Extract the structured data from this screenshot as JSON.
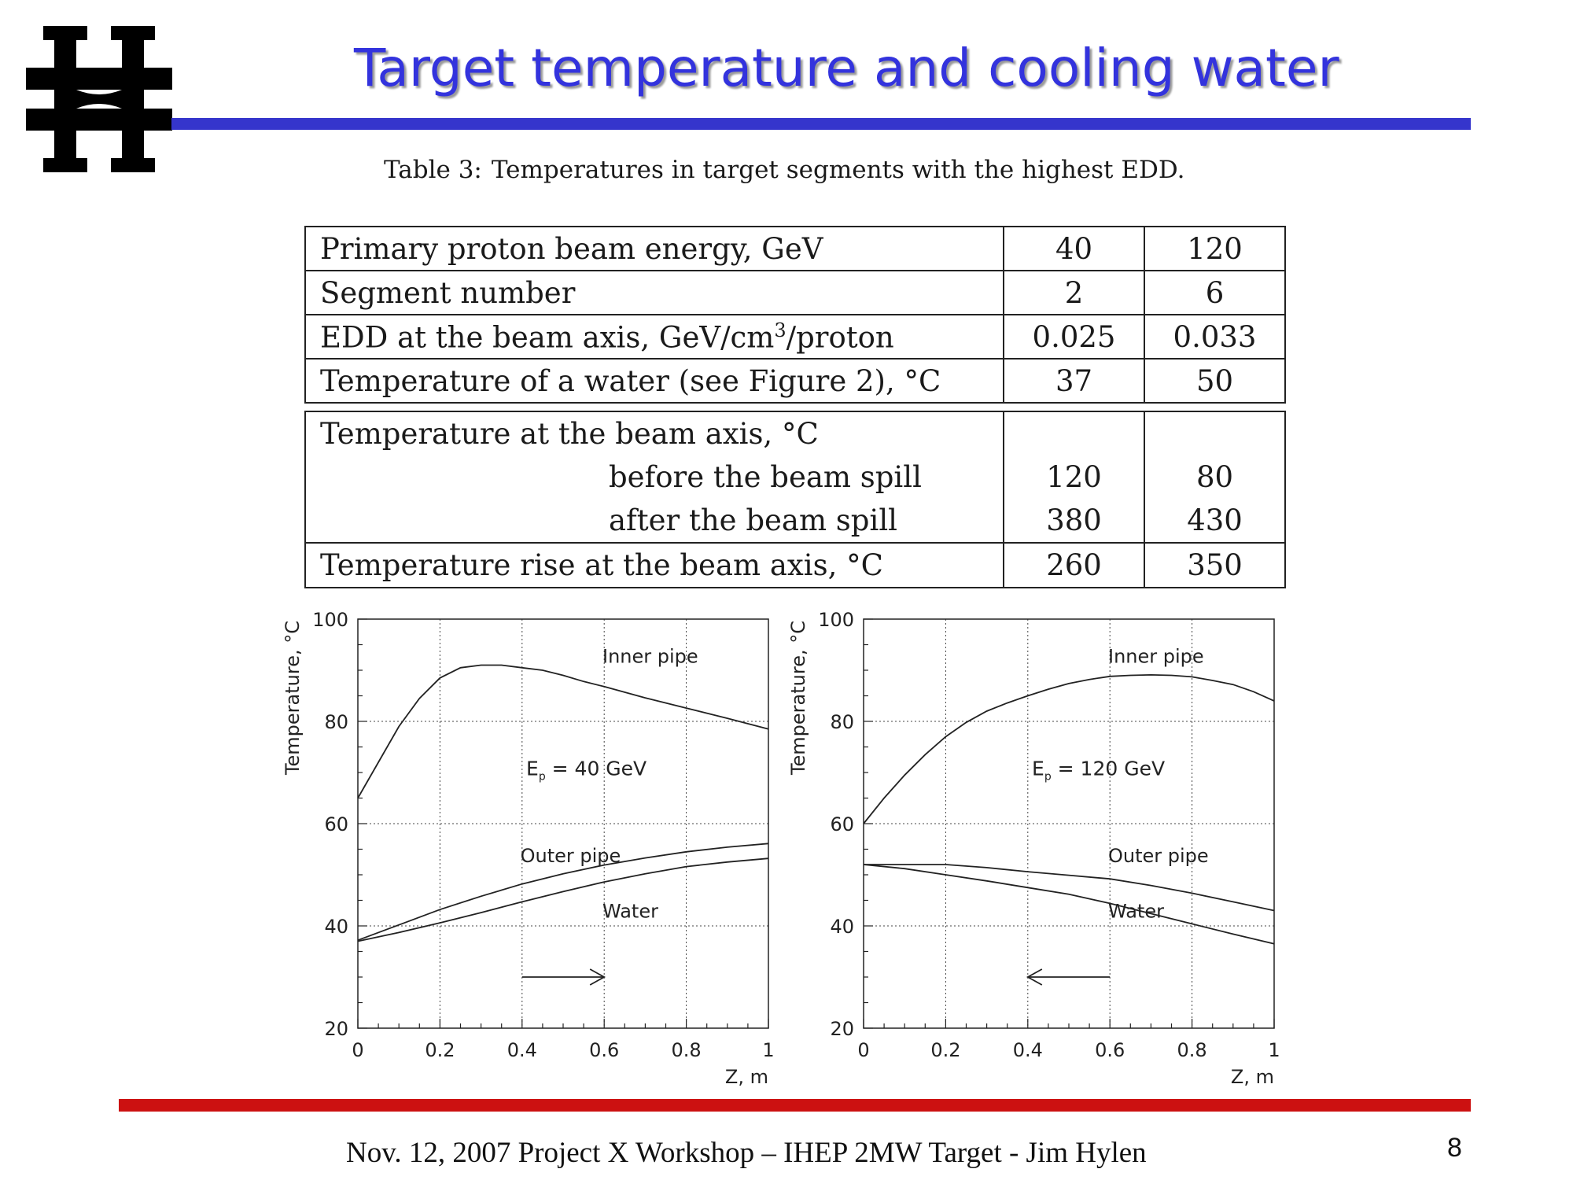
{
  "slide": {
    "title": "Target temperature and cooling water",
    "footer": "Nov. 12, 2007 Project X Workshop – IHEP 2MW Target - Jim Hylen",
    "page_number": "8",
    "colors": {
      "title": "#3333dd",
      "title_rule": "#3535cc",
      "footer_rule": "#cc1111"
    },
    "logo_icon": "fermilab-logo"
  },
  "table": {
    "caption_label": "Table 3:",
    "caption_text": "Temperatures in target segments with the highest EDD.",
    "rows": [
      {
        "label": "Primary proton beam energy, GeV",
        "v40": "40",
        "v120": "120"
      },
      {
        "label": "Segment number",
        "v40": "2",
        "v120": "6"
      },
      {
        "label_pre": "EDD at the beam axis, GeV/cm",
        "label_sup": "3",
        "label_post": "/proton",
        "v40": "0.025",
        "v120": "0.033"
      },
      {
        "label": "Temperature of a water (see Figure 2), °C",
        "v40": "37",
        "v120": "50"
      }
    ],
    "axis_block": {
      "label": "Temperature at the beam axis, °C",
      "before_label": "before the beam spill",
      "before_v40": "120",
      "before_v120": "80",
      "after_label": "after the beam spill",
      "after_v40": "380",
      "after_v120": "430"
    },
    "rise_row": {
      "label": "Temperature rise at the beam axis, °C",
      "v40": "260",
      "v120": "350"
    }
  },
  "chart_data": [
    {
      "type": "line",
      "xlabel": "Z, m",
      "ylabel": "Temperature, °C",
      "xlim": [
        0,
        1
      ],
      "ylim": [
        20,
        100
      ],
      "xticks": [
        "0",
        "0.2",
        "0.4",
        "0.6",
        "0.8",
        "1"
      ],
      "yticks": [
        "20",
        "40",
        "60",
        "80",
        "100"
      ],
      "grid": true,
      "annotation": {
        "main": "E",
        "sub": "p",
        "rest": " = 40 GeV"
      },
      "arrow": {
        "from": 0.4,
        "to": 0.6,
        "y": 30
      },
      "series": [
        {
          "name": "Inner pipe",
          "x": [
            0,
            0.05,
            0.1,
            0.15,
            0.2,
            0.25,
            0.3,
            0.35,
            0.4,
            0.45,
            0.5,
            0.55,
            0.6,
            0.7,
            0.8,
            0.9,
            1.0
          ],
          "y": [
            65,
            72,
            79,
            84.5,
            88.5,
            90.5,
            91,
            91,
            90.5,
            90,
            89,
            87.8,
            86.8,
            84.6,
            82.6,
            80.6,
            78.5
          ],
          "label_pos": [
            0.5,
            91.5
          ]
        },
        {
          "name": "Outer pipe",
          "x": [
            0,
            0.1,
            0.2,
            0.3,
            0.4,
            0.5,
            0.6,
            0.7,
            0.8,
            0.9,
            1.0
          ],
          "y": [
            37.2,
            40.2,
            43.2,
            45.8,
            48.2,
            50.2,
            51.9,
            53.3,
            54.5,
            55.4,
            56.1
          ],
          "label_pos": [
            0.3,
            52.5
          ]
        },
        {
          "name": "Water",
          "x": [
            0,
            0.1,
            0.2,
            0.3,
            0.4,
            0.5,
            0.6,
            0.7,
            0.8,
            0.9,
            1.0
          ],
          "y": [
            37,
            38.7,
            40.6,
            42.6,
            44.7,
            46.7,
            48.6,
            50.2,
            51.6,
            52.5,
            53.2
          ],
          "label_pos": [
            0.5,
            41.6
          ]
        }
      ]
    },
    {
      "type": "line",
      "xlabel": "Z, m",
      "ylabel": "Temperature, °C",
      "xlim": [
        0,
        1
      ],
      "ylim": [
        20,
        100
      ],
      "xticks": [
        "0",
        "0.2",
        "0.4",
        "0.6",
        "0.8",
        "1"
      ],
      "yticks": [
        "20",
        "40",
        "60",
        "80",
        "100"
      ],
      "grid": true,
      "annotation": {
        "main": "E",
        "sub": "p",
        "rest": " = 120 GeV"
      },
      "arrow": {
        "from": 0.6,
        "to": 0.4,
        "y": 30
      },
      "series": [
        {
          "name": "Inner pipe",
          "x": [
            0,
            0.05,
            0.1,
            0.15,
            0.2,
            0.25,
            0.3,
            0.35,
            0.4,
            0.45,
            0.5,
            0.55,
            0.6,
            0.65,
            0.7,
            0.75,
            0.8,
            0.85,
            0.9,
            0.95,
            1.0
          ],
          "y": [
            60,
            65,
            69.5,
            73.5,
            77,
            79.8,
            82,
            83.6,
            85,
            86.3,
            87.4,
            88.2,
            88.8,
            89,
            89.1,
            89,
            88.7,
            88,
            87.2,
            85.8,
            84
          ],
          "label_pos": [
            0.5,
            91.5
          ]
        },
        {
          "name": "Outer pipe",
          "x": [
            0,
            0.1,
            0.2,
            0.3,
            0.4,
            0.5,
            0.6,
            0.7,
            0.8,
            0.9,
            1.0
          ],
          "y": [
            52,
            52,
            52,
            51.4,
            50.6,
            49.9,
            49.2,
            47.9,
            46.4,
            44.7,
            43
          ],
          "label_pos": [
            0.5,
            52.5
          ]
        },
        {
          "name": "Water",
          "x": [
            0,
            0.1,
            0.2,
            0.3,
            0.4,
            0.5,
            0.6,
            0.7,
            0.8,
            0.9,
            1.0
          ],
          "y": [
            52,
            51.2,
            50,
            48.8,
            47.5,
            46.2,
            44.4,
            42.4,
            40.4,
            38.4,
            36.5
          ],
          "label_pos": [
            0.5,
            41.6
          ]
        }
      ]
    }
  ]
}
